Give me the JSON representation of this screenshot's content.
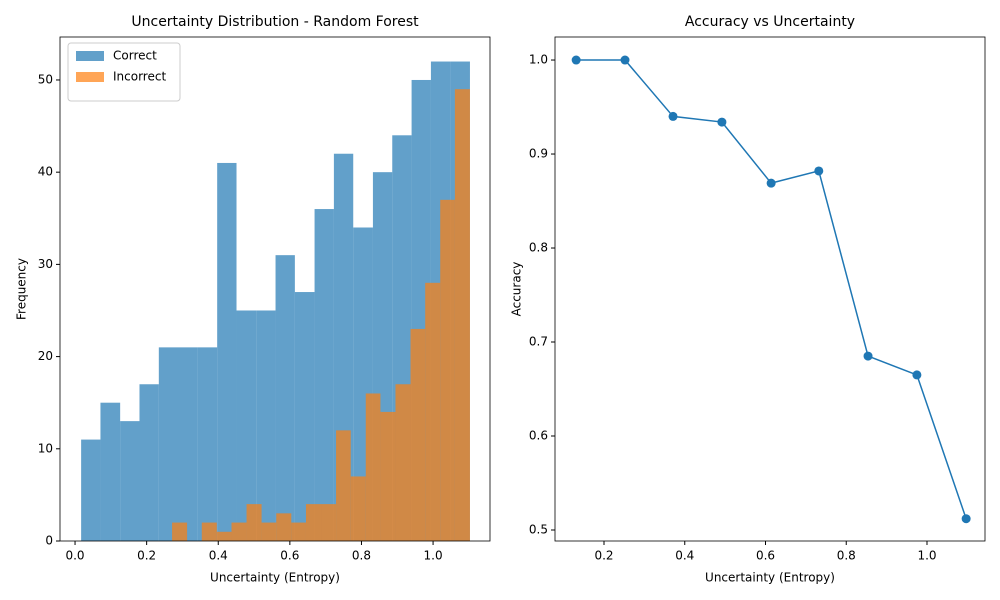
{
  "chart_data": [
    {
      "type": "histogram",
      "title": "Uncertainty Distribution - Random Forest",
      "x_label": "Uncertainty (Entropy)",
      "y_label": "Frequency",
      "series": [
        {
          "name": "Correct",
          "color": "#1f77b4",
          "bins": [
            0.017,
            0.071,
            0.126,
            0.18,
            0.234,
            0.289,
            0.343,
            0.397,
            0.451,
            0.506,
            0.56,
            0.614,
            0.669,
            0.723,
            0.777,
            0.832,
            0.886,
            0.94,
            0.994,
            1.049,
            1.103
          ],
          "values": [
            11,
            15,
            13,
            17,
            21,
            21,
            21,
            41,
            25,
            25,
            31,
            27,
            36,
            42,
            34,
            40,
            44,
            50,
            52,
            52
          ]
        },
        {
          "name": "Incorrect",
          "color": "#ff7f0e",
          "bins": [
            0.271,
            0.313,
            0.354,
            0.396,
            0.437,
            0.479,
            0.521,
            0.562,
            0.604,
            0.645,
            0.687,
            0.729,
            0.77,
            0.812,
            0.853,
            0.895,
            0.937,
            0.978,
            1.02,
            1.061,
            1.103
          ],
          "values": [
            2,
            0,
            2,
            1,
            2,
            4,
            2,
            3,
            2,
            4,
            4,
            12,
            7,
            16,
            14,
            17,
            23,
            28,
            37,
            49
          ]
        }
      ],
      "opacity": 0.7,
      "legend": "upper left",
      "xlim": [
        -0.042,
        1.159
      ],
      "ylim": [
        0,
        54.66
      ],
      "xticks": [
        {
          "value": 0,
          "label": "0.0"
        },
        {
          "value": 0.2,
          "label": "0.2"
        },
        {
          "value": 0.4,
          "label": "0.4"
        },
        {
          "value": 0.6,
          "label": "0.6"
        },
        {
          "value": 0.8,
          "label": "0.8"
        },
        {
          "value": 1,
          "label": "1.0"
        }
      ],
      "yticks": [
        0,
        10,
        20,
        30,
        40,
        50
      ]
    },
    {
      "type": "line",
      "title": "Accuracy vs Uncertainty",
      "x_label": "Uncertainty (Entropy)",
      "y_label": "Accuracy",
      "color": "#1f77b4",
      "markers": true,
      "x": [
        0.131,
        0.252,
        0.371,
        0.492,
        0.614,
        0.732,
        0.854,
        0.975,
        1.097
      ],
      "values": [
        1.0,
        1.0,
        0.94,
        0.934,
        0.869,
        0.882,
        0.685,
        0.665,
        0.512
      ],
      "xlim": [
        0.0786,
        1.1437
      ],
      "ylim": [
        0.4883,
        1.0245
      ],
      "xticks": [
        {
          "value": 0.2,
          "label": "0.2"
        },
        {
          "value": 0.4,
          "label": "0.4"
        },
        {
          "value": 0.6,
          "label": "0.6"
        },
        {
          "value": 0.8,
          "label": "0.8"
        },
        {
          "value": 1,
          "label": "1.0"
        }
      ],
      "yticks": [
        {
          "value": 0.5,
          "label": "0.5"
        },
        {
          "value": 0.6,
          "label": "0.6"
        },
        {
          "value": 0.7,
          "label": "0.7"
        },
        {
          "value": 0.8,
          "label": "0.8"
        },
        {
          "value": 0.9,
          "label": "0.9"
        },
        {
          "value": 1,
          "label": "1.0"
        }
      ]
    }
  ]
}
